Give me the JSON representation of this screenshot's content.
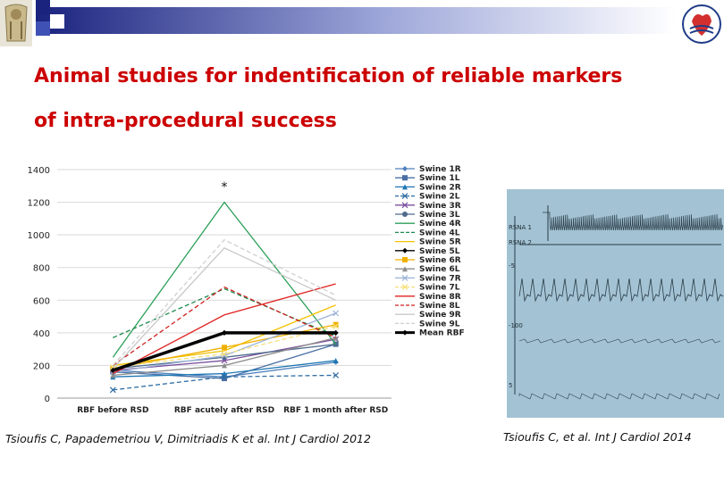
{
  "slide": {
    "title_line1": "Animal studies for indentification of reliable markers",
    "title_line2": "of intra-procedural success",
    "citation_left": "Tsioufis C, Papademetriou V, Dimitriadis K et al. Int J Cardiol 2012",
    "citation_right": "Tsioufis C,  et al. Int J Cardiol 2014",
    "title_color": "#cc0000",
    "header_colors": [
      "#1a237e",
      "#9fa8da"
    ],
    "logos": [
      "columns-icon",
      "heart-emblem-icon"
    ]
  },
  "chart_data": {
    "type": "line",
    "categories": [
      "RBF before RSD",
      "RBF acutely after RSD",
      "RBF 1 month after RSD"
    ],
    "ylim": [
      0,
      1400
    ],
    "yticks": [
      0,
      200,
      400,
      600,
      800,
      1000,
      1200,
      1400
    ],
    "annotation": "*",
    "legend_position": "right",
    "grid": true,
    "series": [
      {
        "name": "Swine 1R",
        "values": [
          170,
          130,
          220
        ],
        "color": "#4f81bd",
        "dash": false,
        "marker": "diamond"
      },
      {
        "name": "Swine 1L",
        "values": [
          160,
          120,
          330
        ],
        "color": "#4a6fa5",
        "dash": false,
        "marker": "square"
      },
      {
        "name": "Swine 2R",
        "values": [
          130,
          150,
          230
        ],
        "color": "#1f77b4",
        "dash": false,
        "marker": "triangle"
      },
      {
        "name": "Swine 2L",
        "values": [
          50,
          130,
          140
        ],
        "color": "#2e6da4",
        "dash": true,
        "marker": "x"
      },
      {
        "name": "Swine 3R",
        "values": [
          170,
          230,
          360
        ],
        "color": "#7b4f9d",
        "dash": false,
        "marker": "x"
      },
      {
        "name": "Swine 3L",
        "values": [
          180,
          250,
          330
        ],
        "color": "#4e6b8c",
        "dash": false,
        "marker": "circle"
      },
      {
        "name": "Swine 4R",
        "values": [
          250,
          1200,
          330
        ],
        "color": "#2ca05a",
        "dash": false,
        "marker": "none"
      },
      {
        "name": "Swine 4L",
        "values": [
          370,
          670,
          380
        ],
        "color": "#1e8a4c",
        "dash": true,
        "marker": "none"
      },
      {
        "name": "Swine 5R",
        "values": [
          200,
          290,
          570
        ],
        "color": "#f2c200",
        "dash": false,
        "marker": "none"
      },
      {
        "name": "Swine 5L",
        "values": [
          170,
          400,
          400
        ],
        "color": "#000000",
        "dash": false,
        "marker": "diamond"
      },
      {
        "name": "Swine 6R",
        "values": [
          180,
          310,
          450
        ],
        "color": "#f0b000",
        "dash": false,
        "marker": "square"
      },
      {
        "name": "Swine 6L",
        "values": [
          140,
          200,
          370
        ],
        "color": "#8c8c8c",
        "dash": false,
        "marker": "triangle"
      },
      {
        "name": "Swine 7R",
        "values": [
          160,
          260,
          520
        ],
        "color": "#9db3d8",
        "dash": false,
        "marker": "x"
      },
      {
        "name": "Swine 7L",
        "values": [
          190,
          270,
          440
        ],
        "color": "#f5e07a",
        "dash": true,
        "marker": "x"
      },
      {
        "name": "Swine 8R",
        "values": [
          150,
          510,
          700
        ],
        "color": "#e02020",
        "dash": false,
        "marker": "none"
      },
      {
        "name": "Swine 8L",
        "values": [
          200,
          680,
          370
        ],
        "color": "#d02020",
        "dash": true,
        "marker": "none"
      },
      {
        "name": "Swine 9R",
        "values": [
          180,
          920,
          600
        ],
        "color": "#c8c8c8",
        "dash": false,
        "marker": "none"
      },
      {
        "name": "Swine 9L",
        "values": [
          200,
          970,
          630
        ],
        "color": "#d0d0d0",
        "dash": true,
        "marker": "none"
      },
      {
        "name": "Mean RBF",
        "values": [
          170,
          400,
          400
        ],
        "color": "#000000",
        "dash": false,
        "marker": "diamond",
        "bold": true
      }
    ]
  },
  "recording": {
    "background": "#a3c3d4",
    "channel_labels": [
      "RSNA 1",
      "RSNA 2",
      "-5",
      "-100",
      "5"
    ]
  }
}
